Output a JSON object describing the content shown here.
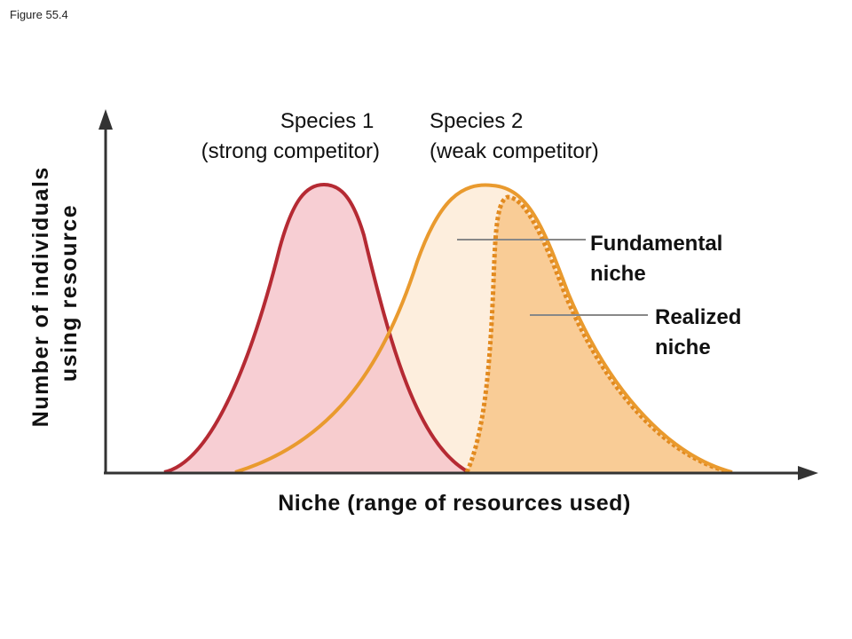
{
  "figure_label": "Figure 55.4",
  "axes": {
    "x_title": "Niche (range of resources used)",
    "y_title_line1": "Number of individuals",
    "y_title_line2": "using resource"
  },
  "species": [
    {
      "name_line1": "Species 1",
      "name_line2": "(strong competitor)",
      "stroke_color": "#b52a33",
      "fill_color": "#f6c6cb"
    },
    {
      "name_line1": "Species 2",
      "name_line2": "(weak competitor)",
      "stroke_color": "#e99a2e",
      "fill_color": "#fdeedd"
    }
  ],
  "callouts": {
    "fundamental_line1": "Fundamental",
    "fundamental_line2": "niche",
    "realized_line1": "Realized",
    "realized_line2": "niche",
    "realized_fill_color": "#f9cc96"
  }
}
